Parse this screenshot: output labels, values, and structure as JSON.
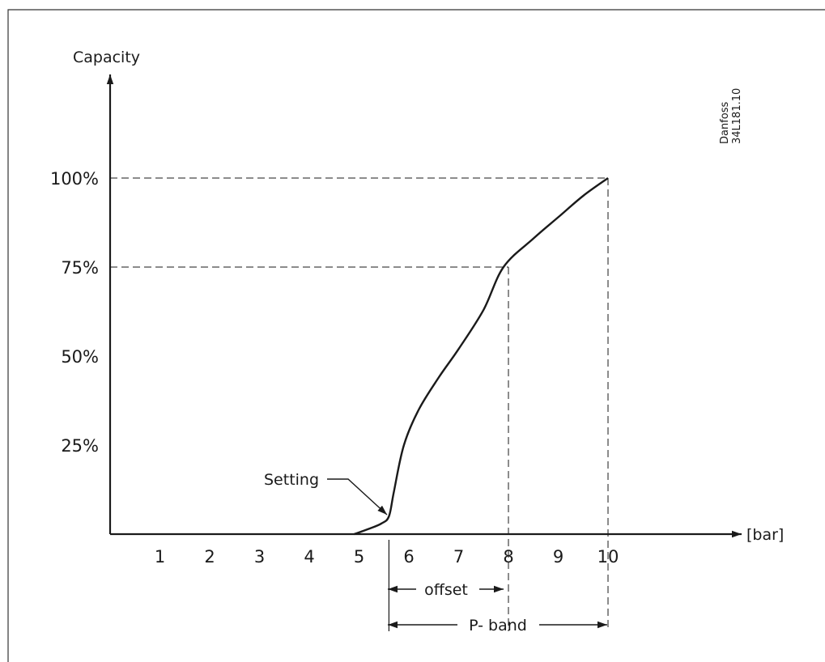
{
  "chart_data": {
    "type": "line",
    "title": "",
    "ylabel": "Capacity",
    "xlabel": "[bar]",
    "x_ticks": [
      "1",
      "2",
      "3",
      "4",
      "5",
      "6",
      "7",
      "8",
      "9",
      "10"
    ],
    "y_ticks": [
      "25%",
      "50%",
      "75%",
      "100%"
    ],
    "xlim": [
      0,
      12.5
    ],
    "ylim": [
      0,
      125
    ],
    "grid": false,
    "series": [
      {
        "x": [
          4.9,
          5.2,
          5.45,
          5.6,
          5.7,
          5.9,
          6.2,
          6.6,
          7.0,
          7.5,
          7.9,
          8.5,
          9.0,
          9.5,
          10.0
        ],
        "y": [
          0,
          1.5,
          3,
          5,
          12,
          25,
          35,
          44,
          52,
          63,
          75,
          83,
          89,
          95,
          100
        ]
      }
    ],
    "reference_lines": [
      {
        "x": 8,
        "y": 75
      },
      {
        "x": 10,
        "y": 100
      }
    ],
    "annotations": {
      "setting": "Setting",
      "offset": "offset",
      "p_band": "P- band",
      "setting_x": 5.6,
      "offset_range": [
        5.6,
        7.9
      ],
      "p_band_range": [
        5.6,
        10.0
      ]
    },
    "figure_id": {
      "brand": "Danfoss",
      "code": "34L181.10"
    }
  }
}
